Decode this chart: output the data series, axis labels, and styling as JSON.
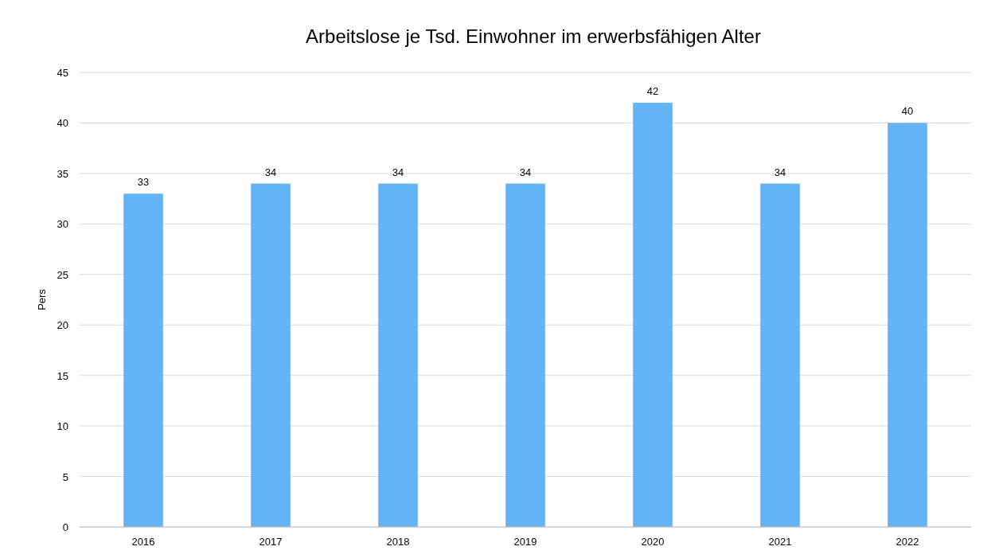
{
  "chart_data": {
    "type": "bar",
    "title": "Arbeitslose je Tsd. Einwohner im erwerbsfähigen Alter",
    "ylabel": "Pers",
    "categories": [
      "2016",
      "2017",
      "2018",
      "2019",
      "2020",
      "2021",
      "2022"
    ],
    "values": [
      33,
      34,
      34,
      34,
      42,
      34,
      40
    ],
    "color": "#64b5f6",
    "ylim": [
      0,
      45
    ],
    "yticks": [
      0,
      5,
      10,
      15,
      20,
      25,
      30,
      35,
      40,
      45
    ],
    "grid": "y",
    "data_labels": true
  }
}
